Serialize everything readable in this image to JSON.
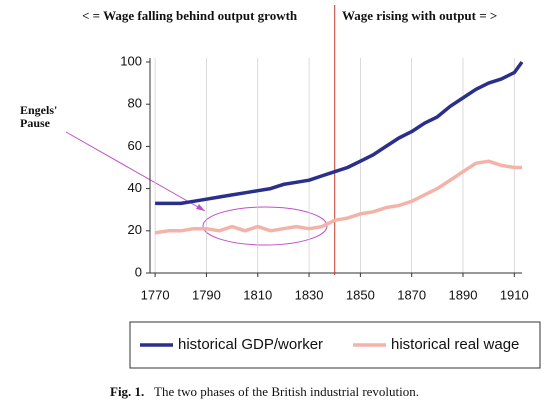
{
  "chart_data": {
    "type": "line",
    "header_left": "< = Wage falling behind output growth",
    "header_right": "Wage rising with output = >",
    "annotation_lines": [
      "Engels'",
      "Pause"
    ],
    "caption_label": "Fig. 1.",
    "caption": "The two phases of the British industrial revolution.",
    "divider_x": 1840,
    "x": [
      1770,
      1775,
      1780,
      1785,
      1790,
      1795,
      1800,
      1805,
      1810,
      1815,
      1820,
      1825,
      1830,
      1835,
      1840,
      1845,
      1850,
      1855,
      1860,
      1865,
      1870,
      1875,
      1880,
      1885,
      1890,
      1895,
      1900,
      1905,
      1910,
      1913
    ],
    "series": [
      {
        "name": "historical GDP/worker",
        "color": "#2b2f8c",
        "values": [
          33,
          33,
          33,
          34,
          35,
          36,
          37,
          38,
          39,
          40,
          42,
          43,
          44,
          46,
          48,
          50,
          53,
          56,
          60,
          64,
          67,
          71,
          74,
          79,
          83,
          87,
          90,
          92,
          95,
          100
        ]
      },
      {
        "name": "historical real wage",
        "color": "#f4b3a8",
        "values": [
          19,
          20,
          20,
          21,
          21,
          20,
          22,
          20,
          22,
          20,
          21,
          22,
          21,
          22,
          25,
          26,
          28,
          29,
          31,
          32,
          34,
          37,
          40,
          44,
          48,
          52,
          53,
          51,
          50,
          50
        ]
      }
    ],
    "xlim": [
      1768,
      1913
    ],
    "xticks": [
      1770,
      1790,
      1810,
      1830,
      1850,
      1870,
      1890,
      1910
    ],
    "ylim": [
      0,
      100
    ],
    "yticks": [
      0,
      20,
      40,
      60,
      80,
      100
    ],
    "grid": true
  }
}
